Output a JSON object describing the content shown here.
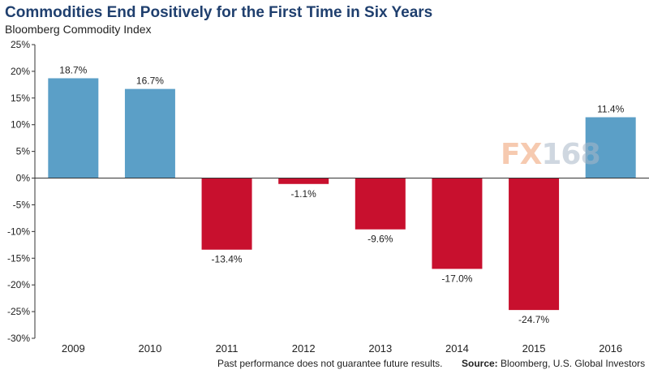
{
  "title": "Commodities End Positively for the First Time in Six Years",
  "subtitle": "Bloomberg Commodity Index",
  "footer": {
    "note": "Past performance does not guarantee future results.",
    "source_label": "Source:",
    "source_text": "Bloomberg, U.S. Global Investors"
  },
  "watermark": {
    "part1": "FX",
    "part2": "168"
  },
  "colors": {
    "positive": "#5b9fc7",
    "negative": "#c8102e",
    "title": "#1f3f6e",
    "watermark1": "#f0a070",
    "watermark2": "#a9b8c8"
  },
  "chart_data": {
    "type": "bar",
    "title": "Commodities End Positively for the First Time in Six Years",
    "subtitle": "Bloomberg Commodity Index",
    "categories": [
      "2009",
      "2010",
      "2011",
      "2012",
      "2013",
      "2014",
      "2015",
      "2016"
    ],
    "values": [
      18.7,
      16.7,
      -13.4,
      -1.1,
      -9.6,
      -17.0,
      -24.7,
      11.4
    ],
    "value_labels": [
      "18.7%",
      "16.7%",
      "-13.4%",
      "-1.1%",
      "-9.6%",
      "-17.0%",
      "-24.7%",
      "11.4%"
    ],
    "ylim": [
      -30,
      25
    ],
    "yticks": [
      25,
      20,
      15,
      10,
      5,
      0,
      -5,
      -10,
      -15,
      -20,
      -25,
      -30
    ],
    "ytick_labels": [
      "25%",
      "20%",
      "15%",
      "10%",
      "5%",
      "0%",
      "-5%",
      "-10%",
      "-15%",
      "-20%",
      "-25%",
      "-30%"
    ],
    "grid": false,
    "legend": "none"
  }
}
